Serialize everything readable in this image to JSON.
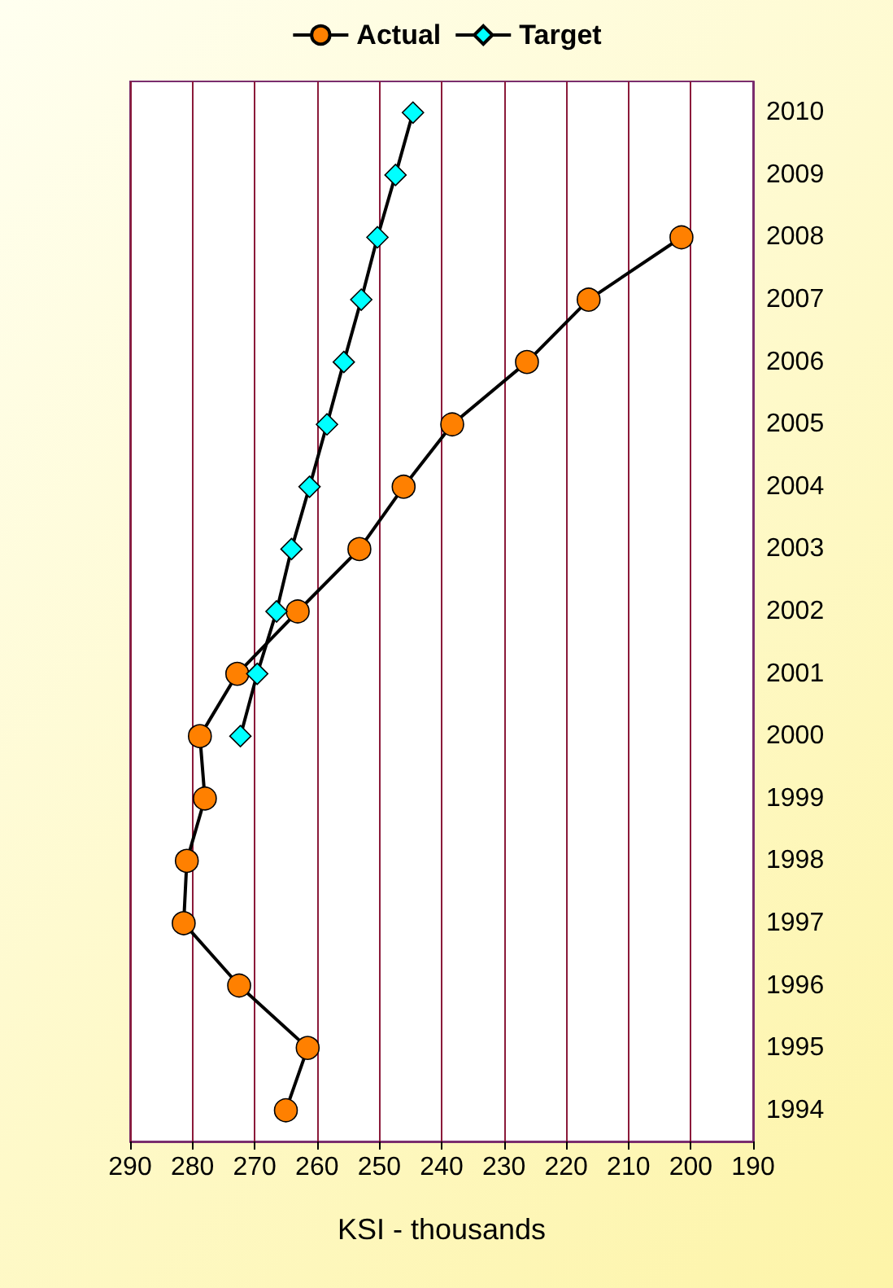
{
  "chart_data": {
    "type": "line",
    "orientation": "horizontal",
    "xlabel": "KSI - thousands",
    "categories": [
      "2010",
      "2009",
      "2008",
      "2007",
      "2006",
      "2005",
      "2004",
      "2003",
      "2002",
      "2001",
      "2000",
      "1999",
      "1998",
      "1997",
      "1996",
      "1995",
      "1994"
    ],
    "series": [
      {
        "name": "Actual",
        "color": "#ff8000",
        "marker": "circle",
        "values": [
          null,
          null,
          201.5,
          216.4,
          226.3,
          238.3,
          246.1,
          253.2,
          263.1,
          272.8,
          278.8,
          278,
          280.9,
          281.4,
          272.5,
          261.5,
          265
        ]
      },
      {
        "name": "Target",
        "color": "#00ffff",
        "marker": "diamond",
        "values": [
          244.6,
          247.4,
          250.3,
          252.9,
          255.7,
          258.4,
          261.2,
          264.1,
          266.5,
          269.6,
          272.3,
          null,
          null,
          null,
          null,
          null,
          null
        ]
      }
    ],
    "xlim": [
      290,
      190
    ],
    "xticks": [
      290,
      280,
      270,
      260,
      250,
      240,
      230,
      220,
      210,
      200,
      190
    ],
    "grid": "x",
    "legend": "top"
  }
}
